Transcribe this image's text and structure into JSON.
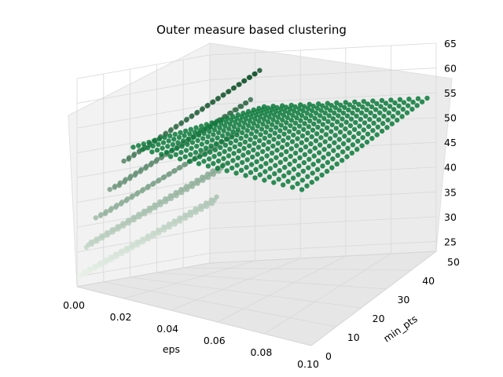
{
  "chart_data": {
    "type": "scatter",
    "title": "Outer measure based clustering",
    "xlabel": "eps",
    "ylabel": "min_pts",
    "zlabel": "",
    "xlim": [
      0.0,
      0.1
    ],
    "ylim": [
      0,
      50
    ],
    "zlim": [
      23,
      65
    ],
    "x_ticks": [
      "0.00",
      "0.02",
      "0.04",
      "0.06",
      "0.08",
      "0.10"
    ],
    "y_ticks": [
      "0",
      "10",
      "20",
      "30",
      "40",
      "50"
    ],
    "z_ticks": [
      "25",
      "30",
      "35",
      "40",
      "45",
      "50",
      "55",
      "60",
      "65"
    ],
    "grid": true,
    "colormap": "Greens",
    "colors": {
      "dark": "#00441b",
      "plateau": "#0a7a3a",
      "light": "#f7fcf5",
      "pane": "#f2f2f2",
      "grid": "#d8d8d8"
    },
    "series": [
      {
        "points_note": "",
        "eps_values": [
          0.001,
          0.002,
          0.003,
          0.004,
          0.005,
          0.006,
          0.008,
          0.01,
          0.012,
          0.014,
          0.016,
          0.018,
          0.02,
          0.022
        ],
        "min_pts_values": [
          0,
          2,
          4,
          6,
          8,
          10,
          12,
          14,
          16,
          18,
          20,
          22,
          24,
          26,
          28,
          30,
          32,
          34,
          36,
          38,
          40,
          42,
          44,
          46,
          48,
          50
        ],
        "plateau_value": 54,
        "plateau_from_eps": 0.024
      }
    ]
  }
}
